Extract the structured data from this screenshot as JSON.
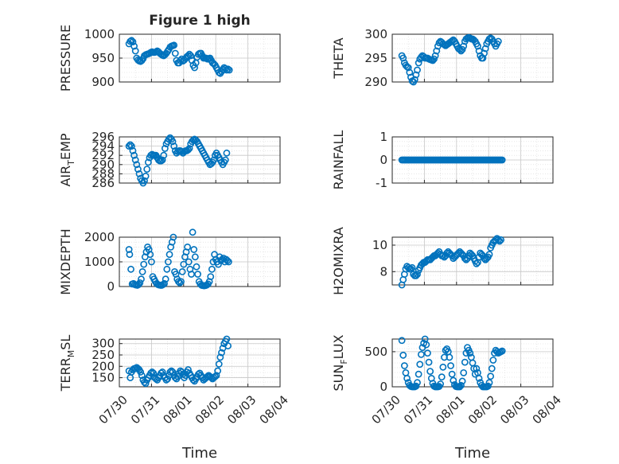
{
  "title": "Figure 1 high",
  "x_label": "Time",
  "x_tick_labels": [
    "07/30",
    "07/31",
    "08/01",
    "08/02",
    "08/03",
    "08/04"
  ],
  "marker_color": "#0072BD",
  "marker": "circle",
  "chart_data": [
    {
      "type": "scatter",
      "ylabel_parts": [
        "PRESSURE"
      ],
      "ylim": [
        900,
        1000
      ],
      "yticks": [
        900,
        950,
        1000
      ],
      "grid": "major+minor",
      "x": [
        0.3,
        0.34,
        0.38,
        0.42,
        0.46,
        0.5,
        0.54,
        0.58,
        0.62,
        0.66,
        0.7,
        0.74,
        0.78,
        0.82,
        0.86,
        0.9,
        0.94,
        0.98,
        1.02,
        1.06,
        1.1,
        1.14,
        1.18,
        1.22,
        1.26,
        1.3,
        1.34,
        1.38,
        1.42,
        1.46,
        1.5,
        1.54,
        1.58,
        1.62,
        1.66,
        1.7,
        1.74,
        1.78,
        1.82,
        1.86,
        1.9,
        1.94,
        1.98,
        2.02,
        2.06,
        2.1,
        2.14,
        2.18,
        2.22,
        2.26,
        2.3,
        2.34,
        2.38,
        2.42,
        2.46,
        2.5,
        2.54,
        2.58,
        2.62,
        2.66,
        2.7,
        2.74,
        2.78,
        2.82,
        2.86,
        2.9,
        2.94,
        2.98,
        3.02,
        3.06,
        3.1,
        3.14,
        3.18,
        3.22,
        3.26,
        3.3,
        3.34,
        3.38,
        3.42
      ],
      "y": [
        980,
        985,
        987,
        984,
        975,
        965,
        950,
        946,
        944,
        943,
        945,
        949,
        955,
        957,
        958,
        959,
        960,
        962,
        963,
        962,
        962,
        963,
        965,
        963,
        960,
        958,
        956,
        955,
        957,
        960,
        964,
        968,
        973,
        975,
        976,
        977,
        960,
        945,
        940,
        940,
        945,
        948,
        944,
        946,
        949,
        953,
        955,
        958,
        955,
        945,
        935,
        930,
        940,
        952,
        958,
        960,
        960,
        955,
        950,
        950,
        950,
        948,
        949,
        950,
        945,
        940,
        938,
        935,
        930,
        925,
        920,
        918,
        922,
        926,
        930,
        928,
        925,
        927,
        925
      ]
    },
    {
      "type": "scatter",
      "ylabel_parts": [
        "THETA"
      ],
      "ylim": [
        290,
        300
      ],
      "yticks": [
        290,
        295,
        300
      ],
      "grid": "major+minor",
      "x": [
        0.3,
        0.34,
        0.38,
        0.42,
        0.46,
        0.5,
        0.54,
        0.58,
        0.62,
        0.66,
        0.7,
        0.74,
        0.78,
        0.82,
        0.86,
        0.9,
        0.94,
        0.98,
        1.02,
        1.06,
        1.1,
        1.14,
        1.18,
        1.22,
        1.26,
        1.3,
        1.34,
        1.38,
        1.42,
        1.46,
        1.5,
        1.54,
        1.58,
        1.62,
        1.66,
        1.7,
        1.74,
        1.78,
        1.82,
        1.86,
        1.9,
        1.94,
        1.98,
        2.02,
        2.06,
        2.1,
        2.14,
        2.18,
        2.22,
        2.26,
        2.3,
        2.34,
        2.38,
        2.42,
        2.46,
        2.5,
        2.54,
        2.58,
        2.62,
        2.66,
        2.7,
        2.74,
        2.78,
        2.82,
        2.86,
        2.9,
        2.94,
        2.98,
        3.02,
        3.06,
        3.1,
        3.14,
        3.18,
        3.22,
        3.26,
        3.3
      ],
      "y": [
        295.5,
        295.0,
        294.0,
        293.5,
        293.2,
        293.0,
        292.0,
        291.0,
        290.2,
        290.0,
        290.5,
        291.5,
        292.5,
        294.0,
        294.8,
        295.2,
        295.5,
        295.3,
        295.0,
        295.0,
        295.0,
        294.8,
        294.7,
        294.6,
        294.5,
        294.8,
        295.5,
        296.5,
        297.5,
        298.2,
        298.5,
        298.3,
        298.0,
        297.8,
        297.6,
        297.8,
        298.0,
        298.2,
        298.4,
        298.6,
        298.8,
        298.5,
        298.0,
        297.5,
        297.0,
        296.8,
        296.5,
        296.8,
        297.5,
        298.5,
        299.0,
        299.2,
        299.3,
        299.2,
        299.0,
        299.0,
        298.8,
        298.5,
        298.0,
        297.5,
        296.5,
        295.5,
        295.0,
        295.0,
        296.0,
        297.0,
        298.0,
        298.5,
        299.0,
        299.2,
        299.0,
        298.5,
        298.0,
        297.5,
        298.0,
        298.5
      ]
    },
    {
      "type": "scatter",
      "ylabel_parts": [
        "AIR",
        "T",
        "EMP"
      ],
      "ylim": [
        286,
        296
      ],
      "yticks": [
        286,
        288,
        290,
        292,
        294,
        296
      ],
      "grid": "major+minor",
      "x": [
        0.3,
        0.34,
        0.38,
        0.42,
        0.46,
        0.5,
        0.54,
        0.58,
        0.62,
        0.66,
        0.7,
        0.74,
        0.78,
        0.82,
        0.86,
        0.9,
        0.94,
        0.98,
        1.02,
        1.06,
        1.1,
        1.14,
        1.18,
        1.22,
        1.26,
        1.3,
        1.34,
        1.38,
        1.42,
        1.46,
        1.5,
        1.54,
        1.58,
        1.62,
        1.66,
        1.7,
        1.74,
        1.78,
        1.82,
        1.86,
        1.9,
        1.94,
        1.98,
        2.02,
        2.06,
        2.1,
        2.14,
        2.18,
        2.22,
        2.26,
        2.3,
        2.34,
        2.38,
        2.42,
        2.46,
        2.5,
        2.54,
        2.58,
        2.62,
        2.66,
        2.7,
        2.74,
        2.78,
        2.82,
        2.86,
        2.9,
        2.94,
        2.98,
        3.02,
        3.06,
        3.1,
        3.14,
        3.18,
        3.22,
        3.26,
        3.3,
        3.34
      ],
      "y": [
        294.0,
        294.3,
        294.0,
        293.0,
        292.0,
        291.0,
        290.0,
        289.0,
        288.0,
        287.0,
        286.5,
        286.0,
        286.5,
        287.5,
        289.0,
        290.5,
        291.5,
        292.0,
        292.2,
        292.0,
        292.0,
        292.0,
        291.5,
        291.0,
        290.8,
        290.8,
        291.0,
        292.0,
        293.5,
        294.5,
        295.0,
        295.5,
        295.8,
        295.5,
        295.0,
        294.0,
        293.0,
        292.5,
        292.8,
        293.0,
        293.0,
        292.8,
        292.5,
        292.8,
        293.0,
        293.0,
        293.2,
        293.5,
        294.5,
        295.0,
        295.3,
        295.5,
        295.3,
        295.0,
        294.5,
        294.0,
        293.5,
        293.0,
        292.5,
        292.0,
        291.5,
        291.0,
        290.5,
        290.0,
        290.2,
        290.5,
        291.0,
        292.0,
        292.5,
        292.0,
        291.5,
        291.0,
        290.5,
        290.0,
        290.5,
        291.0,
        292.5
      ]
    },
    {
      "type": "scatter",
      "ylabel_parts": [
        "RAINFALL"
      ],
      "ylim": [
        -1,
        1
      ],
      "yticks": [
        -1,
        0,
        1
      ],
      "grid": "major+minor",
      "x": [
        0.3,
        0.34,
        0.38,
        0.42,
        0.46,
        0.5,
        0.54,
        0.58,
        0.62,
        0.66,
        0.7,
        0.74,
        0.78,
        0.82,
        0.86,
        0.9,
        0.94,
        0.98,
        1.02,
        1.06,
        1.1,
        1.14,
        1.18,
        1.22,
        1.26,
        1.3,
        1.34,
        1.38,
        1.42,
        1.46,
        1.5,
        1.54,
        1.58,
        1.62,
        1.66,
        1.7,
        1.74,
        1.78,
        1.82,
        1.86,
        1.9,
        1.94,
        1.98,
        2.02,
        2.06,
        2.1,
        2.14,
        2.18,
        2.22,
        2.26,
        2.3,
        2.34,
        2.38,
        2.42,
        2.46,
        2.5,
        2.54,
        2.58,
        2.62,
        2.66,
        2.7,
        2.74,
        2.78,
        2.82,
        2.86,
        2.9,
        2.94,
        2.98,
        3.02,
        3.06,
        3.1,
        3.14,
        3.18,
        3.22,
        3.26,
        3.3,
        3.34,
        3.38,
        3.42
      ],
      "y": [
        0,
        0,
        0,
        0,
        0,
        0,
        0,
        0,
        0,
        0,
        0,
        0,
        0,
        0,
        0,
        0,
        0,
        0,
        0,
        0,
        0,
        0,
        0,
        0,
        0,
        0,
        0,
        0,
        0,
        0,
        0,
        0,
        0,
        0,
        0,
        0,
        0,
        0,
        0,
        0,
        0,
        0,
        0,
        0,
        0,
        0,
        0,
        0,
        0,
        0,
        0,
        0,
        0,
        0,
        0,
        0,
        0,
        0,
        0,
        0,
        0,
        0,
        0,
        0,
        0,
        0,
        0,
        0,
        0,
        0,
        0,
        0,
        0,
        0,
        0,
        0,
        0,
        0,
        0
      ]
    },
    {
      "type": "scatter",
      "ylabel_parts": [
        "MIXDEPTH"
      ],
      "ylim": [
        0,
        2000
      ],
      "yticks": [
        0,
        1000,
        2000
      ],
      "grid": "major+minor",
      "x": [
        0.3,
        0.32,
        0.36,
        0.4,
        0.44,
        0.48,
        0.52,
        0.56,
        0.6,
        0.64,
        0.68,
        0.72,
        0.76,
        0.8,
        0.84,
        0.88,
        0.92,
        0.96,
        1.0,
        1.04,
        1.08,
        1.12,
        1.16,
        1.2,
        1.24,
        1.28,
        1.32,
        1.36,
        1.4,
        1.44,
        1.48,
        1.52,
        1.56,
        1.6,
        1.64,
        1.68,
        1.72,
        1.76,
        1.8,
        1.84,
        1.88,
        1.92,
        1.96,
        2.0,
        2.04,
        2.08,
        2.12,
        2.16,
        2.2,
        2.24,
        2.28,
        2.32,
        2.36,
        2.4,
        2.44,
        2.48,
        2.52,
        2.56,
        2.6,
        2.64,
        2.68,
        2.72,
        2.76,
        2.8,
        2.84,
        2.88,
        2.92,
        2.96,
        3.0,
        3.04,
        3.08,
        3.12,
        3.16,
        3.2,
        3.24,
        3.28,
        3.32,
        3.36,
        3.4
      ],
      "y": [
        1500,
        1300,
        700,
        100,
        120,
        80,
        60,
        50,
        80,
        150,
        300,
        600,
        900,
        1200,
        1400,
        1600,
        1500,
        1300,
        1000,
        400,
        300,
        200,
        120,
        80,
        60,
        50,
        50,
        80,
        120,
        300,
        700,
        1000,
        1300,
        1600,
        1800,
        2000,
        600,
        500,
        300,
        200,
        150,
        200,
        600,
        900,
        1200,
        1400,
        1600,
        1000,
        700,
        500,
        2200,
        1500,
        1200,
        800,
        500,
        200,
        100,
        50,
        40,
        30,
        40,
        60,
        100,
        200,
        400,
        700,
        1000,
        1300,
        1100,
        1000,
        900,
        1200,
        1050,
        1100,
        1150,
        1000,
        1100,
        1050,
        1000
      ]
    },
    {
      "type": "scatter",
      "ylabel_parts": [
        "H2OMIXRA"
      ],
      "ylim": [
        7,
        10.6
      ],
      "yticks": [
        8,
        10
      ],
      "grid": "major+minor",
      "x": [
        0.3,
        0.34,
        0.38,
        0.42,
        0.46,
        0.5,
        0.54,
        0.58,
        0.62,
        0.66,
        0.7,
        0.74,
        0.78,
        0.82,
        0.86,
        0.9,
        0.94,
        0.98,
        1.02,
        1.06,
        1.1,
        1.14,
        1.18,
        1.22,
        1.26,
        1.3,
        1.34,
        1.38,
        1.42,
        1.46,
        1.5,
        1.54,
        1.58,
        1.62,
        1.66,
        1.7,
        1.74,
        1.78,
        1.82,
        1.86,
        1.9,
        1.94,
        1.98,
        2.02,
        2.06,
        2.1,
        2.14,
        2.18,
        2.22,
        2.26,
        2.3,
        2.34,
        2.38,
        2.42,
        2.46,
        2.5,
        2.54,
        2.58,
        2.62,
        2.66,
        2.7,
        2.74,
        2.78,
        2.82,
        2.86,
        2.9,
        2.94,
        2.98,
        3.02,
        3.06,
        3.1,
        3.14,
        3.18,
        3.22,
        3.26,
        3.3,
        3.34,
        3.38
      ],
      "y": [
        7.0,
        7.4,
        7.8,
        8.2,
        8.4,
        8.3,
        8.2,
        8.2,
        8.3,
        7.8,
        7.7,
        7.7,
        7.8,
        8.1,
        8.3,
        8.5,
        8.6,
        8.7,
        8.7,
        8.8,
        8.9,
        8.9,
        8.9,
        9.0,
        9.1,
        9.2,
        9.2,
        9.3,
        9.4,
        9.5,
        9.3,
        9.2,
        9.2,
        9.1,
        9.2,
        9.4,
        9.5,
        9.4,
        9.3,
        9.2,
        9.0,
        9.1,
        9.2,
        9.3,
        9.4,
        9.5,
        9.4,
        9.3,
        9.2,
        9.0,
        8.9,
        9.0,
        9.2,
        9.4,
        9.3,
        9.2,
        9.0,
        8.8,
        8.6,
        8.7,
        9.1,
        9.4,
        9.3,
        9.2,
        9.0,
        8.9,
        9.0,
        9.1,
        9.3,
        9.8,
        10.0,
        10.2,
        10.3,
        10.4,
        10.5,
        10.4,
        10.3,
        10.4
      ]
    },
    {
      "type": "scatter",
      "ylabel_parts": [
        "TERR",
        "M",
        "SL"
      ],
      "ylim": [
        110,
        320
      ],
      "yticks": [
        150,
        200,
        250,
        300
      ],
      "grid": "major+minor",
      "x": [
        0.3,
        0.34,
        0.38,
        0.42,
        0.46,
        0.5,
        0.54,
        0.58,
        0.62,
        0.66,
        0.7,
        0.74,
        0.78,
        0.82,
        0.86,
        0.9,
        0.94,
        0.98,
        1.02,
        1.06,
        1.1,
        1.14,
        1.18,
        1.22,
        1.26,
        1.3,
        1.34,
        1.38,
        1.42,
        1.46,
        1.5,
        1.54,
        1.58,
        1.62,
        1.66,
        1.7,
        1.74,
        1.78,
        1.82,
        1.86,
        1.9,
        1.94,
        1.98,
        2.02,
        2.06,
        2.1,
        2.14,
        2.18,
        2.22,
        2.26,
        2.3,
        2.34,
        2.38,
        2.42,
        2.46,
        2.5,
        2.54,
        2.58,
        2.62,
        2.66,
        2.7,
        2.74,
        2.78,
        2.82,
        2.86,
        2.9,
        2.94,
        2.98,
        3.02,
        3.06,
        3.1,
        3.14,
        3.18,
        3.22,
        3.26,
        3.3,
        3.34,
        3.38
      ],
      "y": [
        180,
        150,
        175,
        185,
        190,
        190,
        195,
        190,
        185,
        175,
        160,
        140,
        130,
        125,
        140,
        150,
        160,
        170,
        175,
        170,
        150,
        145,
        140,
        150,
        160,
        170,
        175,
        160,
        150,
        140,
        145,
        160,
        175,
        180,
        175,
        160,
        150,
        145,
        155,
        170,
        180,
        175,
        165,
        150,
        160,
        175,
        185,
        170,
        160,
        150,
        140,
        135,
        145,
        155,
        165,
        170,
        160,
        150,
        140,
        145,
        150,
        155,
        160,
        155,
        150,
        145,
        150,
        155,
        160,
        180,
        210,
        240,
        260,
        280,
        300,
        310,
        320,
        290
      ]
    },
    {
      "type": "scatter",
      "ylabel_parts": [
        "SUN",
        "F",
        "LUX"
      ],
      "ylim": [
        0,
        680
      ],
      "yticks": [
        0,
        500
      ],
      "grid": "major+minor",
      "x": [
        0.3,
        0.34,
        0.38,
        0.42,
        0.46,
        0.5,
        0.54,
        0.58,
        0.62,
        0.66,
        0.7,
        0.74,
        0.78,
        0.82,
        0.86,
        0.9,
        0.94,
        0.98,
        1.02,
        1.06,
        1.1,
        1.14,
        1.18,
        1.22,
        1.26,
        1.3,
        1.34,
        1.38,
        1.42,
        1.46,
        1.5,
        1.54,
        1.58,
        1.62,
        1.66,
        1.7,
        1.74,
        1.78,
        1.82,
        1.86,
        1.9,
        1.94,
        1.98,
        2.02,
        2.06,
        2.1,
        2.14,
        2.18,
        2.22,
        2.26,
        2.3,
        2.34,
        2.38,
        2.42,
        2.46,
        2.5,
        2.54,
        2.58,
        2.62,
        2.66,
        2.7,
        2.74,
        2.78,
        2.82,
        2.86,
        2.9,
        2.94,
        2.98,
        3.02,
        3.06,
        3.1,
        3.14,
        3.18,
        3.22,
        3.26,
        3.3,
        3.34,
        3.38,
        3.42
      ],
      "y": [
        660,
        450,
        300,
        200,
        120,
        60,
        20,
        5,
        0,
        0,
        0,
        10,
        60,
        180,
        320,
        460,
        560,
        620,
        680,
        600,
        480,
        350,
        220,
        120,
        50,
        10,
        0,
        0,
        0,
        5,
        40,
        140,
        280,
        420,
        520,
        540,
        500,
        420,
        300,
        180,
        90,
        30,
        5,
        0,
        0,
        0,
        20,
        80,
        200,
        350,
        480,
        560,
        520,
        480,
        420,
        340,
        260,
        180,
        260,
        200,
        120,
        60,
        20,
        0,
        0,
        0,
        0,
        10,
        60,
        150,
        260,
        380,
        480,
        520,
        500,
        480,
        490,
        500,
        510
      ]
    }
  ]
}
